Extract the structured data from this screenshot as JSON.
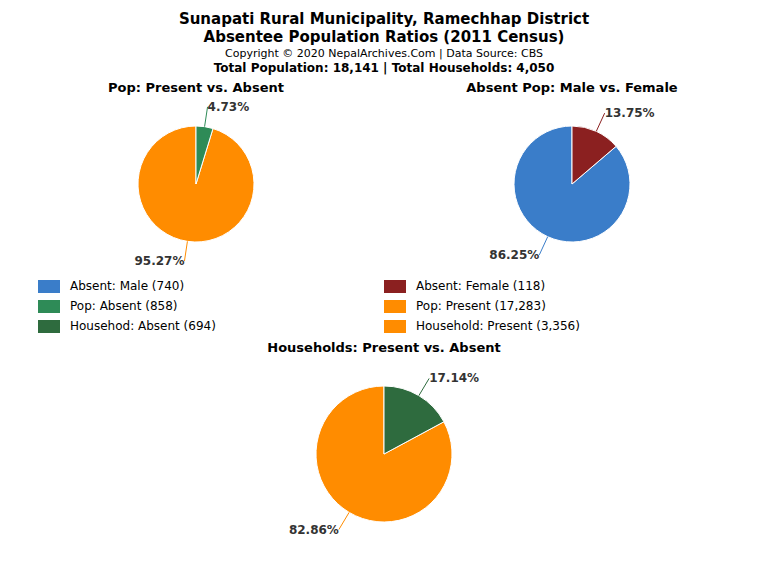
{
  "title": "Sunapati Rural Municipality, Ramechhap District",
  "subtitle": "Absentee Population Ratios (2011 Census)",
  "annotations": [
    "Copyright © 2020 NepalArchives.Com | Data Source: CBS",
    "Total Population: 18,141 | Total Households: 4,050"
  ],
  "legend_entries": [
    {
      "name": "Absent: Male (740)",
      "color": "#3A7DC9"
    },
    {
      "name": "Absent: Female (118)",
      "color": "#8B2020"
    },
    {
      "name": "Pop: Absent (858)",
      "color": "#2E8B57"
    },
    {
      "name": "Pop: Present (17,283)",
      "color": "#FF8C00"
    },
    {
      "name": "Househod: Absent (694)",
      "color": "#2E6B3E"
    },
    {
      "name": "Household: Present (3,356)",
      "color": "#FF8C00"
    }
  ],
  "chart_data": [
    {
      "type": "pie",
      "title": "Pop: Present vs. Absent",
      "values": [
        95.27,
        4.73
      ],
      "value_labels": [
        "95.27%",
        "4.73%"
      ],
      "colors": [
        "#FF8C00",
        "#2E8B57"
      ],
      "data_labels": true
    },
    {
      "type": "pie",
      "title": "Absent Pop: Male vs. Female",
      "values": [
        86.25,
        13.75
      ],
      "value_labels": [
        "86.25%",
        "13.75%"
      ],
      "colors": [
        "#3A7DC9",
        "#8B2020"
      ],
      "data_labels": true
    },
    {
      "type": "pie",
      "title": "Households: Present vs. Absent",
      "values": [
        82.86,
        17.14
      ],
      "value_labels": [
        "82.86%",
        "17.14%"
      ],
      "colors": [
        "#FF8C00",
        "#2E6B3E"
      ],
      "data_labels": true
    }
  ]
}
